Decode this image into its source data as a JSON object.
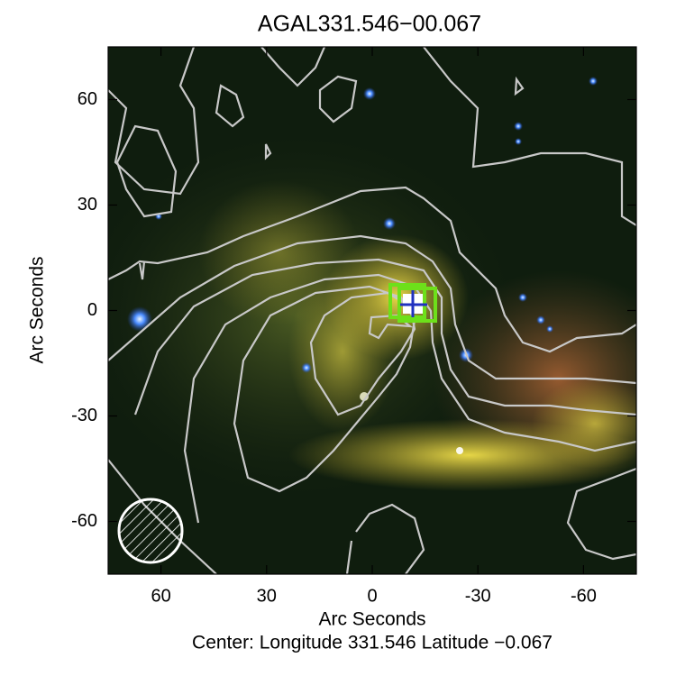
{
  "chart_data": {
    "type": "image",
    "title": "AGAL331.546−00.067",
    "xlabel": "Arc Seconds",
    "ylabel": "Arc Seconds",
    "caption": "Center:  Longitude 331.546 Latitude −0.067",
    "xlim": [
      75,
      -75
    ],
    "ylim": [
      -75,
      75
    ],
    "xticks": [
      60,
      30,
      0,
      -30,
      -60
    ],
    "yticks": [
      -60,
      -30,
      0,
      30,
      60
    ]
  }
}
